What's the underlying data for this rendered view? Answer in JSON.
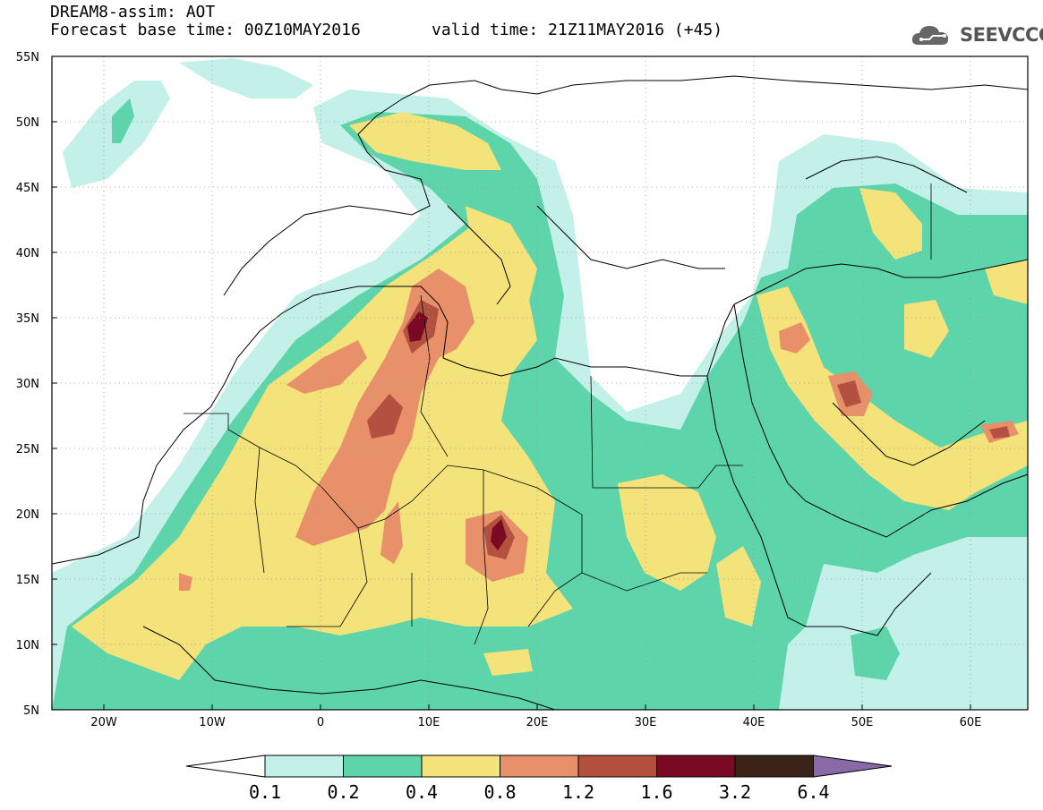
{
  "header": {
    "model_title": "DREAM8-assim: AOT",
    "base_time": "Forecast base time: 00Z10MAY2016",
    "valid_time": "valid time: 21Z11MAY2016 (+45)",
    "logo_text": "SEEVCCC"
  },
  "map": {
    "lat_labels": [
      "55N",
      "50N",
      "45N",
      "40N",
      "35N",
      "30N",
      "25N",
      "20N",
      "15N",
      "10N",
      "5N"
    ],
    "lon_labels": [
      "20W",
      "10W",
      "0",
      "10E",
      "20E",
      "30E",
      "40E",
      "50E",
      "60E"
    ],
    "extent": {
      "lon_min": -25,
      "lon_max": 65,
      "lat_min": 5,
      "lat_max": 55
    },
    "variable": "AOT"
  },
  "colorbar": {
    "labels": [
      "0.1",
      "0.2",
      "0.4",
      "0.8",
      "1.2",
      "1.6",
      "3.2",
      "6.4"
    ],
    "colors": [
      "#ffffff",
      "#c3f0e8",
      "#5ed4aa",
      "#f4e27a",
      "#e8906a",
      "#b35040",
      "#7a0a24",
      "#3a2418",
      "#8a6aa6"
    ]
  }
}
